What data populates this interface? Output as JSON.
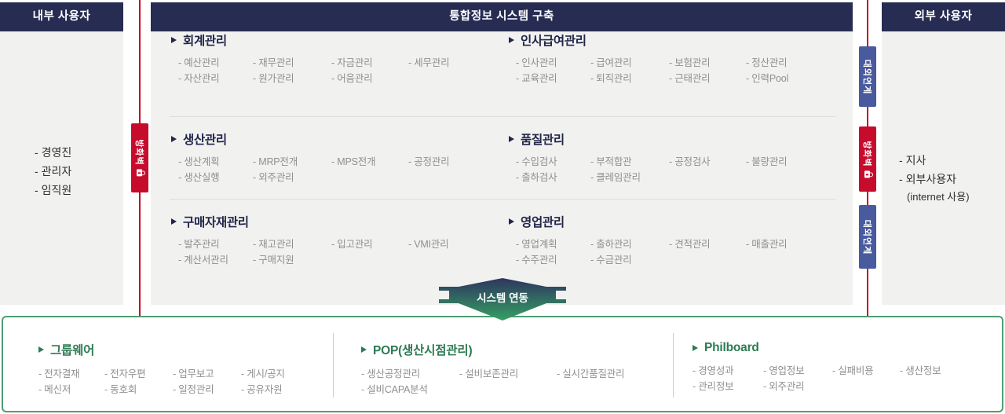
{
  "colors": {
    "navy": "#272c52",
    "red": "#c70b2d",
    "blue": "#4a5a9f",
    "green": "#2d7b53",
    "green_border": "#4f9e74",
    "panel_bg": "#f1f1ef",
    "subtext": "#8f8f8e"
  },
  "left_panel": {
    "title": "내부 사용자",
    "items": [
      "경영진",
      "관리자",
      "임직원"
    ]
  },
  "right_panel": {
    "title": "외부 사용자",
    "items": [
      "지사",
      "외부사용자"
    ],
    "note": "(internet 사용)"
  },
  "main": {
    "title": "통합정보 시스템 구축",
    "modules": [
      {
        "title": "회계관리",
        "items": [
          "예산관리",
          "재무관리",
          "자금관리",
          "세무관리",
          "자산관리",
          "원가관리",
          "어음관리"
        ]
      },
      {
        "title": "인사급여관리",
        "items": [
          "인사관리",
          "급여관리",
          "보험관리",
          "정산관리",
          "교육관리",
          "퇴직관리",
          "근태관리",
          "인력Pool"
        ]
      },
      {
        "title": "생산관리",
        "items": [
          "생산계획",
          "MRP전개",
          "MPS전개",
          "공정관리",
          "생산실행",
          "외주관리"
        ]
      },
      {
        "title": "품질관리",
        "items": [
          "수입검사",
          "부적합관",
          "공정검사",
          "불량관리",
          "출하검사",
          "클레임관리"
        ]
      },
      {
        "title": "구매자재관리",
        "items": [
          "발주관리",
          "재고관리",
          "입고관리",
          "VMI관리",
          "계산서관리",
          "구매지원"
        ]
      },
      {
        "title": "영업관리",
        "items": [
          "영업계획",
          "출하관리",
          "견적관리",
          "매출관리",
          "수주관리",
          "수금관리"
        ]
      }
    ]
  },
  "badges": {
    "security": {
      "label": "방화벽",
      "icon": "lock-icon"
    },
    "interface": {
      "label": "대외연계"
    }
  },
  "connector": {
    "label": "시스템 연동"
  },
  "bottom": {
    "sections": [
      {
        "title": "그룹웨어",
        "items": [
          "전자결재",
          "전자우편",
          "업무보고",
          "게시/공지",
          "메신저",
          "동호회",
          "일정관리",
          "공유자원"
        ]
      },
      {
        "title": "POP(생산시점관리)",
        "items": [
          "생산공정관리",
          "설비보존관리",
          "실시간품질관리",
          "설비CAPA분석"
        ]
      },
      {
        "title": "Philboard",
        "items": [
          "경영성과",
          "영업정보",
          "실패비용",
          "생산정보",
          "관리정보",
          "외주관리"
        ]
      }
    ]
  }
}
